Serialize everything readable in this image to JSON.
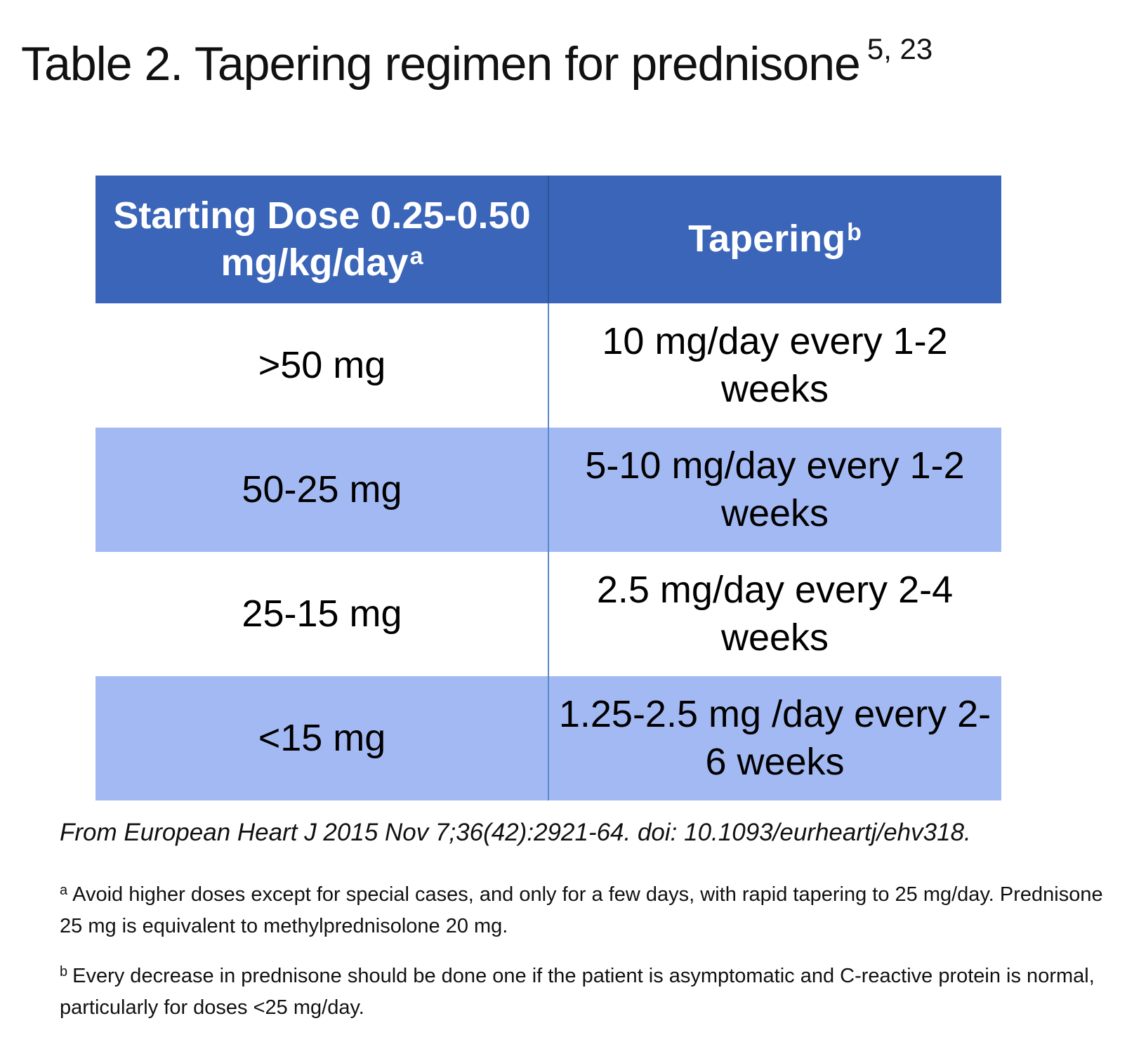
{
  "title": {
    "text": "Table 2. Tapering regimen for prednisone",
    "superscript": "5, 23"
  },
  "table": {
    "header": [
      {
        "text": "Starting Dose 0.25-0.50 mg/kg/day",
        "sup": "a"
      },
      {
        "text": "Tapering",
        "sup": "b"
      }
    ],
    "rows": [
      {
        "dose": ">50 mg",
        "tapering": "10 mg/day every 1-2 weeks"
      },
      {
        "dose": "50-25 mg",
        "tapering": "5-10 mg/day every 1-2 weeks"
      },
      {
        "dose": "25-15 mg",
        "tapering": "2.5 mg/day every 2-4 weeks"
      },
      {
        "dose": "<15 mg",
        "tapering": "1.25-2.5 mg /day every 2-6 weeks"
      }
    ]
  },
  "source": "From European Heart J 2015 Nov 7;36(42):2921-64. doi: 10.1093/eurheartj/ehv318.",
  "footnotes": [
    {
      "marker": "a",
      "text": "Avoid higher doses except for special cases, and only for a few days, with rapid tapering to 25 mg/day. Prednisone 25 mg is equivalent to methylprednisolone 20 mg."
    },
    {
      "marker": "b",
      "text": "Every decrease in prednisone should be done one if the patient is asymptomatic and C-reactive protein is normal, particularly for doses <25 mg/day."
    }
  ],
  "colors": {
    "header_bg": "#3a65b8",
    "alt_row_bg": "#a3b9f3",
    "divider": "#5789c8",
    "header_text": "#ffffff",
    "body_text": "#000000"
  }
}
